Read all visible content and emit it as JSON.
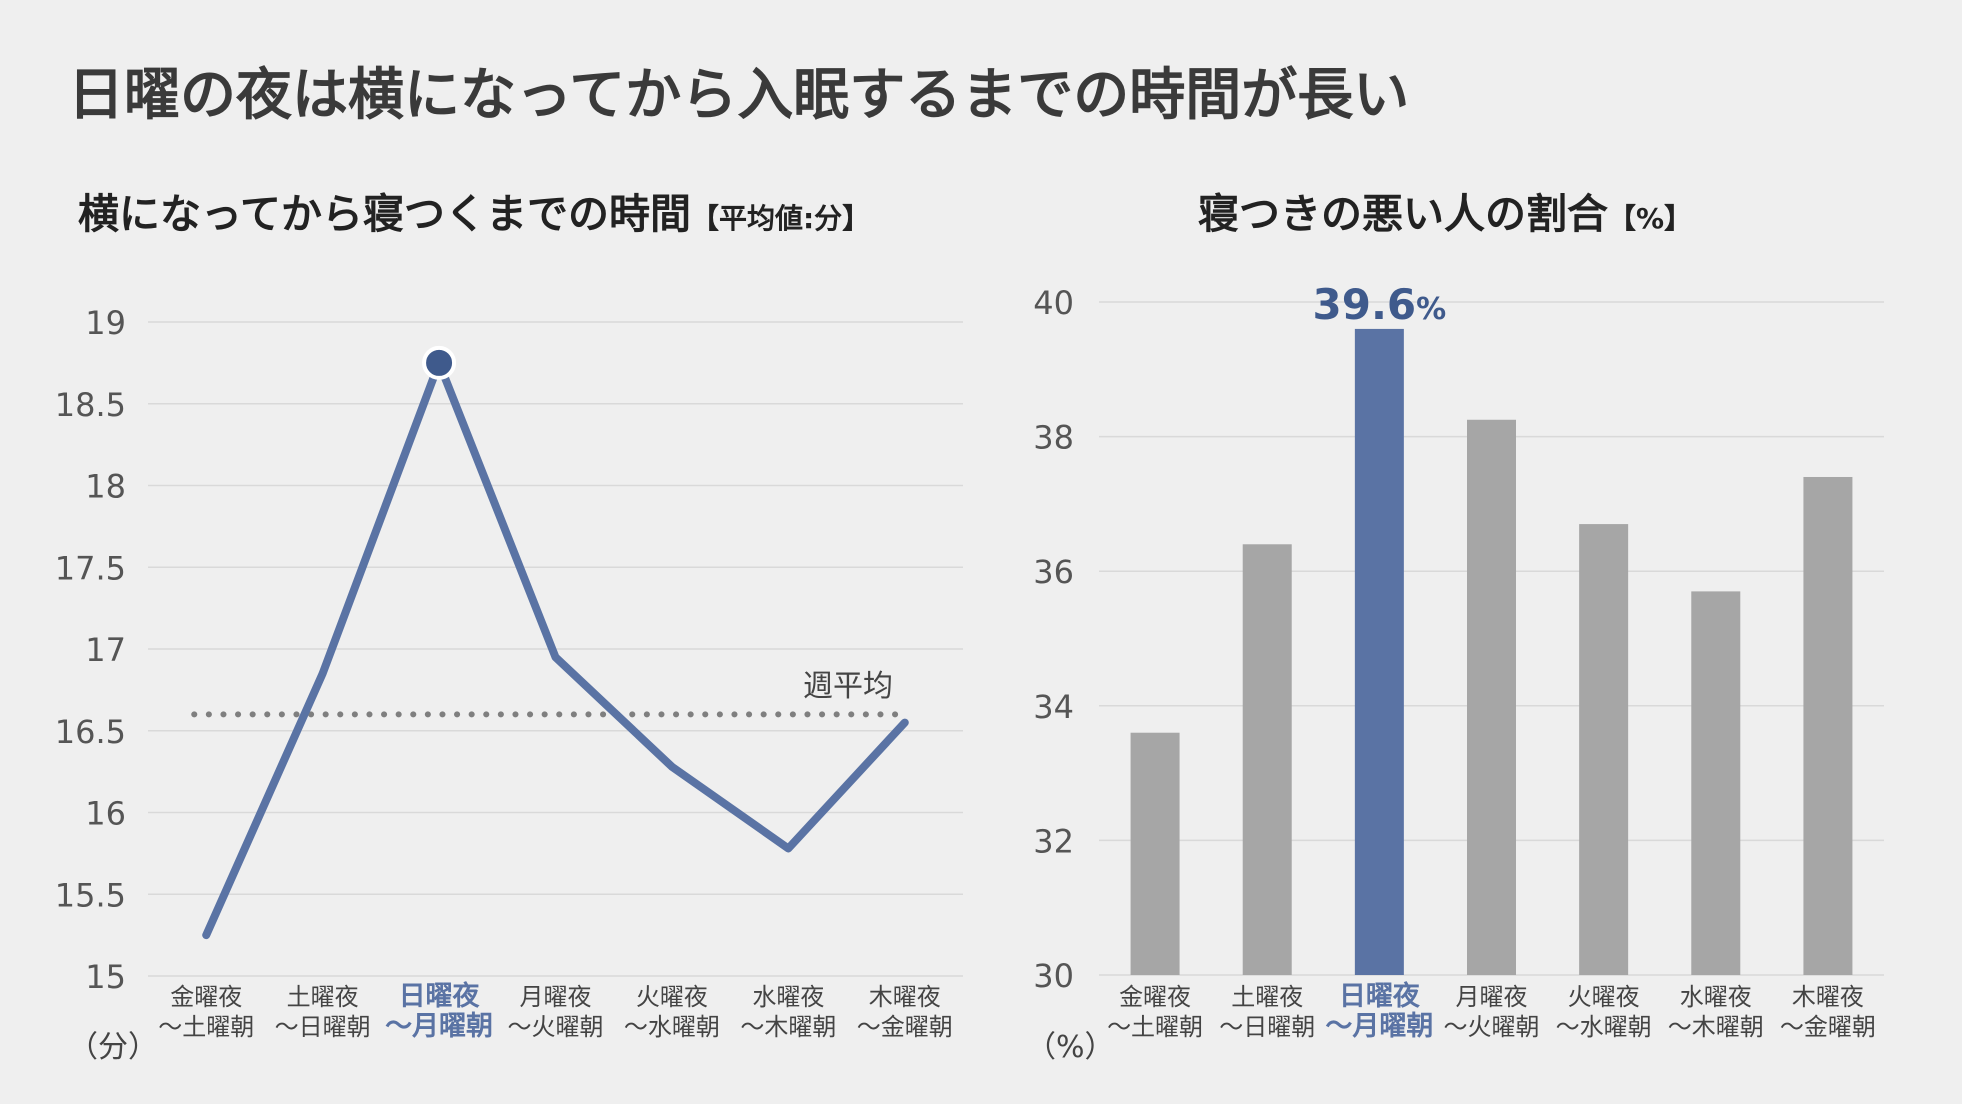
{
  "title": "日曜の夜は横になってから入眠するまでの時間が長い",
  "colors": {
    "accent": "#5a73a4",
    "bar_gray": "#a6a6a6",
    "dots": "#7f7f7f",
    "grid": "#d9d9d9"
  },
  "chart_data": [
    {
      "type": "line",
      "title": "横になってから寝つくまでの時間",
      "unit_bracket": "【平均値:分】",
      "unit_label": "（分）",
      "categories": [
        [
          "金曜夜",
          "～土曜朝"
        ],
        [
          "土曜夜",
          "～日曜朝"
        ],
        [
          "日曜夜",
          "～月曜朝"
        ],
        [
          "月曜夜",
          "～火曜朝"
        ],
        [
          "火曜夜",
          "～水曜朝"
        ],
        [
          "水曜夜",
          "～木曜朝"
        ],
        [
          "木曜夜",
          "～金曜朝"
        ]
      ],
      "highlight_index": 2,
      "series": [
        {
          "values": [
            15.25,
            16.85,
            18.75,
            16.95,
            16.28,
            15.78,
            16.55
          ]
        }
      ],
      "reference_line": {
        "label": "週平均",
        "value": 16.6
      },
      "ylim": [
        15,
        19
      ],
      "yticks": [
        "15",
        "15.5",
        "16",
        "16.5",
        "17",
        "17.5",
        "18",
        "18.5",
        "19"
      ],
      "grid": true
    },
    {
      "type": "bar",
      "title": "寝つきの悪い人の割合",
      "unit_bracket": "【%】",
      "unit_label": "（%）",
      "categories": [
        [
          "金曜夜",
          "～土曜朝"
        ],
        [
          "土曜夜",
          "～日曜朝"
        ],
        [
          "日曜夜",
          "～月曜朝"
        ],
        [
          "月曜夜",
          "～火曜朝"
        ],
        [
          "火曜夜",
          "～水曜朝"
        ],
        [
          "水曜夜",
          "～木曜朝"
        ],
        [
          "木曜夜",
          "～金曜朝"
        ]
      ],
      "highlight_index": 2,
      "values": [
        33.6,
        36.4,
        39.6,
        38.25,
        36.7,
        35.7,
        37.4
      ],
      "highlight_label": "39.6",
      "highlight_label_unit": "%",
      "ylim": [
        30,
        40
      ],
      "yticks": [
        "30",
        "32",
        "34",
        "36",
        "38",
        "40"
      ],
      "grid": true
    }
  ]
}
